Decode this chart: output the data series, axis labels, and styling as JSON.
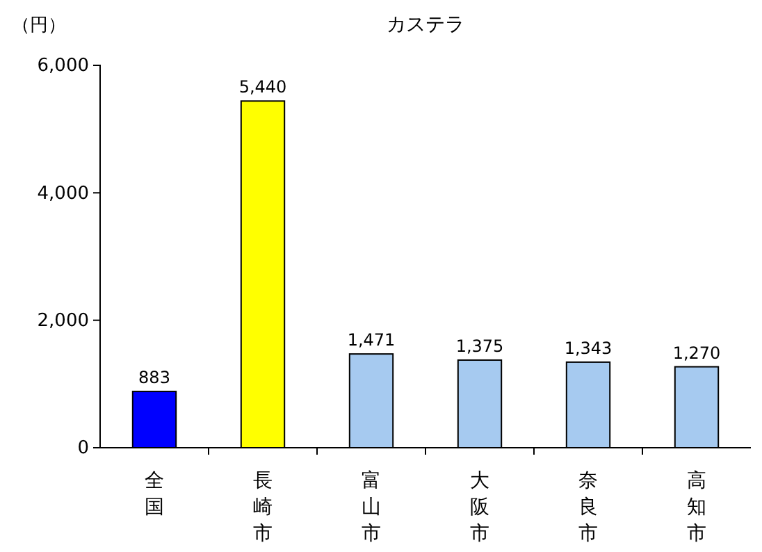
{
  "chart_data": {
    "type": "bar",
    "title": "カステラ",
    "ylabel": "（円）",
    "categories": [
      "全国",
      "長崎市",
      "富山市",
      "大阪市",
      "奈良市",
      "高知市"
    ],
    "values": [
      883,
      5440,
      1471,
      1375,
      1343,
      1270
    ],
    "colors": [
      "#0000ff",
      "#ffff00",
      "#a6caf0",
      "#a6caf0",
      "#a6caf0",
      "#a6caf0"
    ],
    "ylim": [
      0,
      6000
    ],
    "yticks": [
      0,
      {
        "value": 2000,
        "label": "2,000"
      },
      {
        "value": 4000,
        "label": "4,000"
      },
      {
        "value": 6000,
        "label": "6,000"
      }
    ],
    "value_labels": [
      "883",
      "5,440",
      "1,471",
      "1,375",
      "1,343",
      "1,270"
    ],
    "grid": false
  }
}
